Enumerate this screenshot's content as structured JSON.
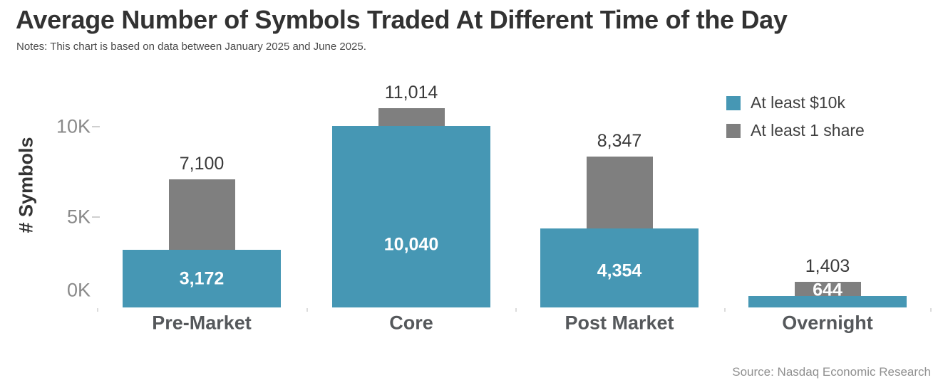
{
  "chart_data": {
    "type": "bar",
    "title": "Average Number of Symbols Traded At Different Time of the Day",
    "notes": "Notes: This chart is based on data between January 2025 and June 2025.",
    "source": "Source: Nasdaq Economic Research",
    "ylabel": "# Symbols",
    "xlabel": "",
    "categories": [
      "Pre-Market",
      "Core",
      "Post Market",
      "Overnight"
    ],
    "series": [
      {
        "name": "At least $10k",
        "color": "#4697B4",
        "values": [
          3172,
          10040,
          4354,
          644
        ],
        "labels": [
          "3,172",
          "10,040",
          "4,354",
          "644"
        ],
        "label_color": "#ffffff",
        "label_placement": "inside"
      },
      {
        "name": "At least 1 share",
        "color": "#7F7F7F",
        "values": [
          7100,
          11014,
          8347,
          1403
        ],
        "labels": [
          "7,100",
          "11,014",
          "8,347",
          "1,403"
        ],
        "label_color": "#3a3a3a",
        "label_placement": "above"
      }
    ],
    "y_ticks": [
      {
        "label": "0K",
        "value": 0
      },
      {
        "label": "5K",
        "value": 5000
      },
      {
        "label": "10K",
        "value": 10000
      }
    ],
    "ylim": [
      0,
      11500
    ],
    "grid": false,
    "legend_position": "top-right",
    "bar_style": "overlapped-centered"
  }
}
